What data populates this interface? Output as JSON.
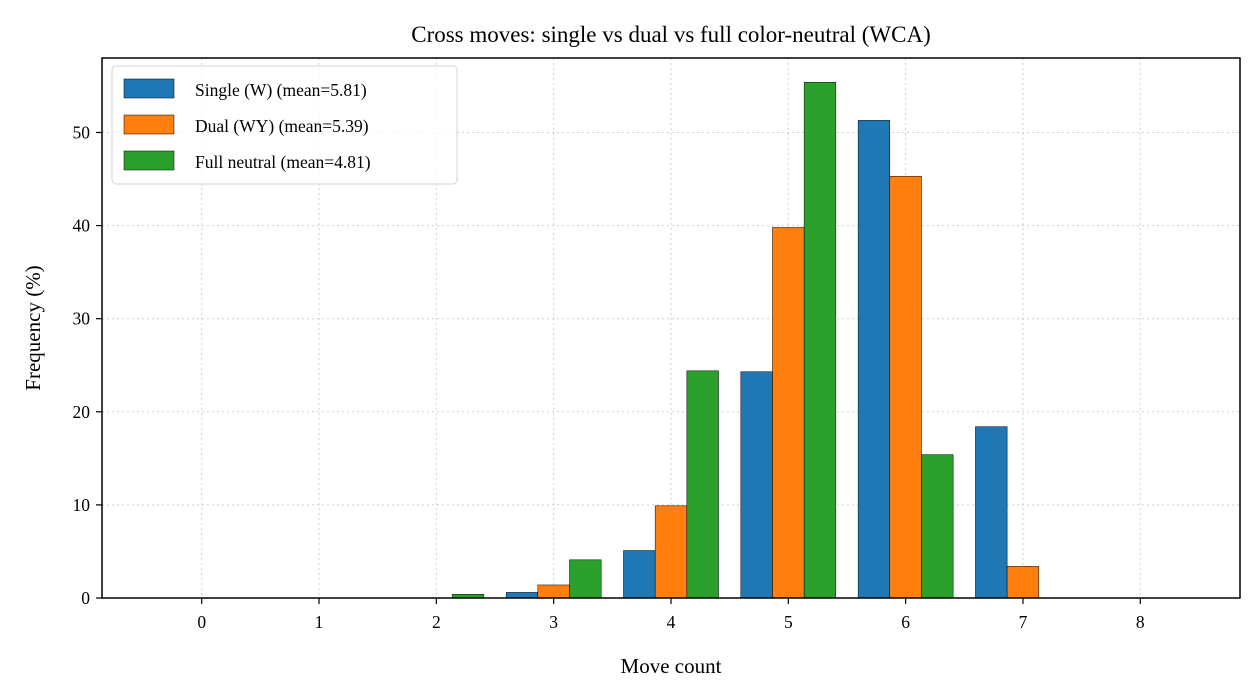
{
  "chart_data": {
    "type": "bar",
    "title": "Cross moves: single vs dual vs full color-neutral (WCA)",
    "xlabel": "Move count",
    "ylabel": "Frequency (%)",
    "categories": [
      "0",
      "1",
      "2",
      "3",
      "4",
      "5",
      "6",
      "7",
      "8"
    ],
    "xlim": [
      -0.85,
      8.85
    ],
    "ylim": [
      0,
      58
    ],
    "yticks": [
      0,
      10,
      20,
      30,
      40,
      50
    ],
    "grid": true,
    "legend_position": "top-left",
    "series": [
      {
        "name": "Single (W) (mean=5.81)",
        "color": "#1f77b4",
        "values": [
          0,
          0,
          0,
          0.6,
          5.1,
          24.3,
          51.3,
          18.4,
          0
        ]
      },
      {
        "name": "Dual (WY) (mean=5.39)",
        "color": "#ff7f0e",
        "values": [
          0,
          0,
          0,
          1.4,
          9.9,
          39.8,
          45.3,
          3.4,
          0
        ]
      },
      {
        "name": "Full neutral (mean=4.81)",
        "color": "#2ca02c",
        "values": [
          0,
          0,
          0.4,
          4.1,
          24.4,
          55.4,
          15.4,
          0,
          0
        ]
      }
    ]
  }
}
